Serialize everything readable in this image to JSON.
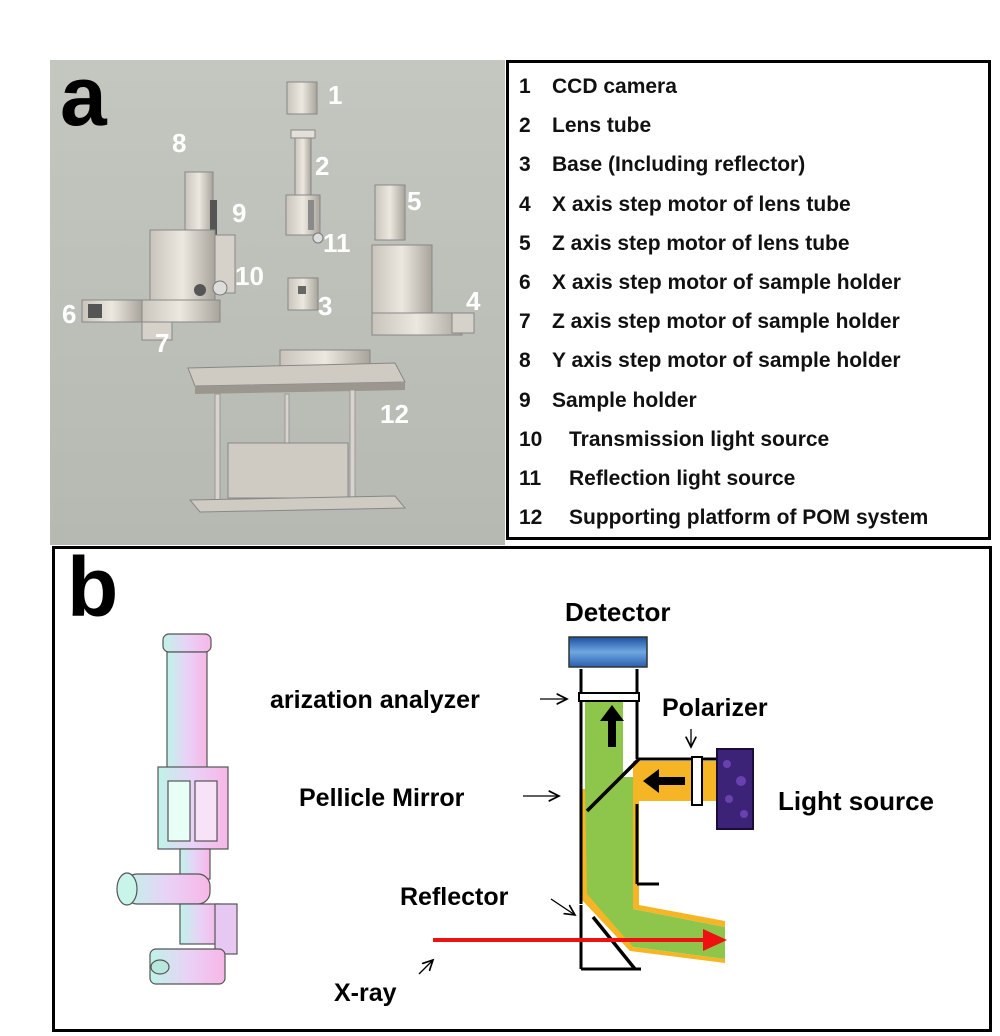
{
  "panel_a": {
    "letter": "a",
    "render_labels": [
      "1",
      "2",
      "3",
      "4",
      "5",
      "6",
      "7",
      "8",
      "9",
      "10",
      "11",
      "12"
    ],
    "legend": [
      {
        "num": "1",
        "text": "CCD camera"
      },
      {
        "num": "2",
        "text": "Lens tube"
      },
      {
        "num": "3",
        "text": "Base (Including reflector)"
      },
      {
        "num": "4",
        "text": "X axis step motor of lens tube"
      },
      {
        "num": "5",
        "text": "Z axis step motor of lens tube"
      },
      {
        "num": "6",
        "text": "X axis step motor of sample holder"
      },
      {
        "num": "7",
        "text": "Z axis step motor of sample holder"
      },
      {
        "num": "8",
        "text": "Y axis step motor of sample holder"
      },
      {
        "num": "9",
        "text": "Sample holder"
      },
      {
        "num": "10",
        "text": "Transmission light source"
      },
      {
        "num": "11",
        "text": "Reflection light source"
      },
      {
        "num": "12",
        "text": "Supporting platform of POM system"
      }
    ]
  },
  "panel_b": {
    "letter": "b",
    "labels": {
      "detector": "Detector",
      "analyzer": "arization analyzer",
      "polarizer": "Polarizer",
      "pellicle": "Pellicle Mirror",
      "light_source": "Light source",
      "reflector": "Reflector",
      "xray": "X-ray"
    }
  },
  "colors": {
    "render_bg": "#bec0ba",
    "beam_green": "#8dc64a",
    "beam_orange": "#f5b524",
    "xray_red": "#ee1111",
    "detector_blue": "#3a7cc4",
    "light_purple": "#4a2a8a"
  }
}
